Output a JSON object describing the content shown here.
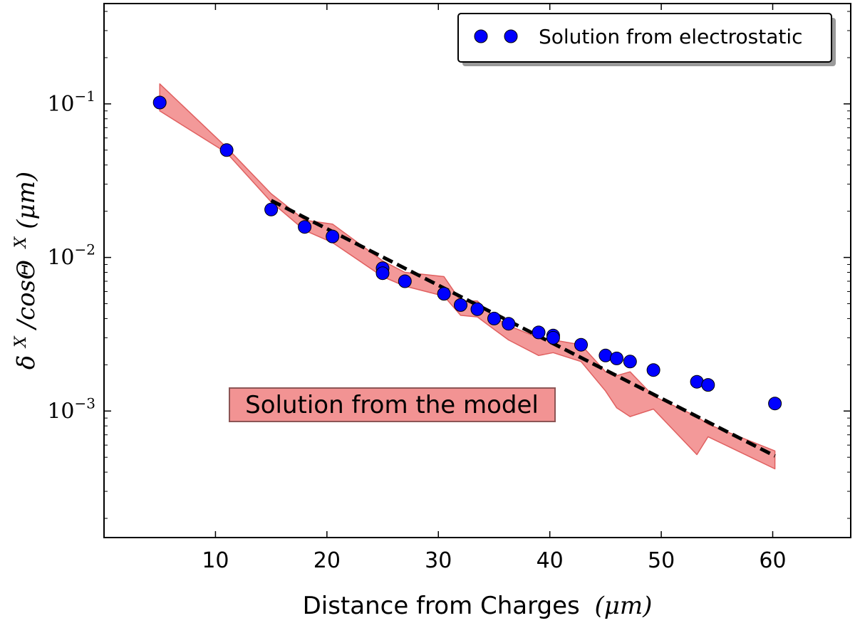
{
  "chart_data": {
    "type": "scatter",
    "title": "",
    "xlabel": "Distance from Charges",
    "xlabel_unit": "(μm)",
    "ylabel": "δ^X / cosΘ^X (μm)",
    "ylabel_parts": {
      "delta": "δ",
      "x_sup": "X",
      "slash_cos": "/cosΘ",
      "unit": "(μm)"
    },
    "xlim": [
      0,
      67
    ],
    "ylim": [
      0.00015,
      0.45
    ],
    "yscale": "log",
    "grid": false,
    "x_ticks": [
      "10",
      "20",
      "30",
      "40",
      "50",
      "60"
    ],
    "x_tick_values": [
      10,
      20,
      30,
      40,
      50,
      60
    ],
    "y_ticks": [
      {
        "base": "10",
        "exp": "−1",
        "value": 0.1
      },
      {
        "base": "10",
        "exp": "−2",
        "value": 0.01
      },
      {
        "base": "10",
        "exp": "−3",
        "value": 0.001
      }
    ],
    "legend": {
      "position": "top-right",
      "entries": [
        {
          "label": "Solution from electrostatic",
          "marker": "circle",
          "color": "#0000ff"
        }
      ]
    },
    "annotation": {
      "text": "Solution from the model",
      "facecolor": "#f08080"
    },
    "series": [
      {
        "name": "Solution from electrostatic",
        "kind": "scatter",
        "color": "#0000ff",
        "x": [
          5,
          11,
          15,
          18,
          20.5,
          25,
          25,
          27,
          30.5,
          32,
          33.5,
          35,
          36.3,
          39,
          40.3,
          40.3,
          42.8,
          45,
          46,
          47.2,
          49.3,
          53.2,
          54.2,
          60.2
        ],
        "y": [
          0.102,
          0.05,
          0.0205,
          0.0158,
          0.0137,
          0.0085,
          0.0079,
          0.007,
          0.0058,
          0.0049,
          0.0046,
          0.004,
          0.0037,
          0.00325,
          0.0031,
          0.003,
          0.0027,
          0.0023,
          0.0022,
          0.0021,
          0.00185,
          0.00155,
          0.00148,
          0.00112
        ]
      },
      {
        "name": "Fit",
        "kind": "dashed-line",
        "color": "#000000",
        "x": [
          15,
          60.2
        ],
        "y": [
          0.0235,
          0.00051
        ]
      },
      {
        "name": "Solution from the model",
        "kind": "band",
        "color": "#f08080",
        "x": [
          5,
          11,
          15,
          18,
          20.5,
          25,
          27,
          30.5,
          32,
          33.5,
          35,
          36.3,
          39,
          40.3,
          42.8,
          45,
          46,
          47.2,
          49.3,
          53.2,
          54.2,
          60.2
        ],
        "upper": [
          0.135,
          0.052,
          0.026,
          0.0175,
          0.0165,
          0.0095,
          0.008,
          0.0075,
          0.0052,
          0.0052,
          0.0041,
          0.0036,
          0.003,
          0.0029,
          0.0027,
          0.0018,
          0.0017,
          0.0018,
          0.00125,
          0.00092,
          0.00082,
          0.00055
        ],
        "lower": [
          0.09,
          0.048,
          0.023,
          0.015,
          0.0125,
          0.0075,
          0.0065,
          0.0056,
          0.0042,
          0.0041,
          0.0034,
          0.0029,
          0.0023,
          0.0024,
          0.0021,
          0.00135,
          0.00105,
          0.00092,
          0.00103,
          0.00052,
          0.00068,
          0.00042
        ]
      }
    ]
  }
}
